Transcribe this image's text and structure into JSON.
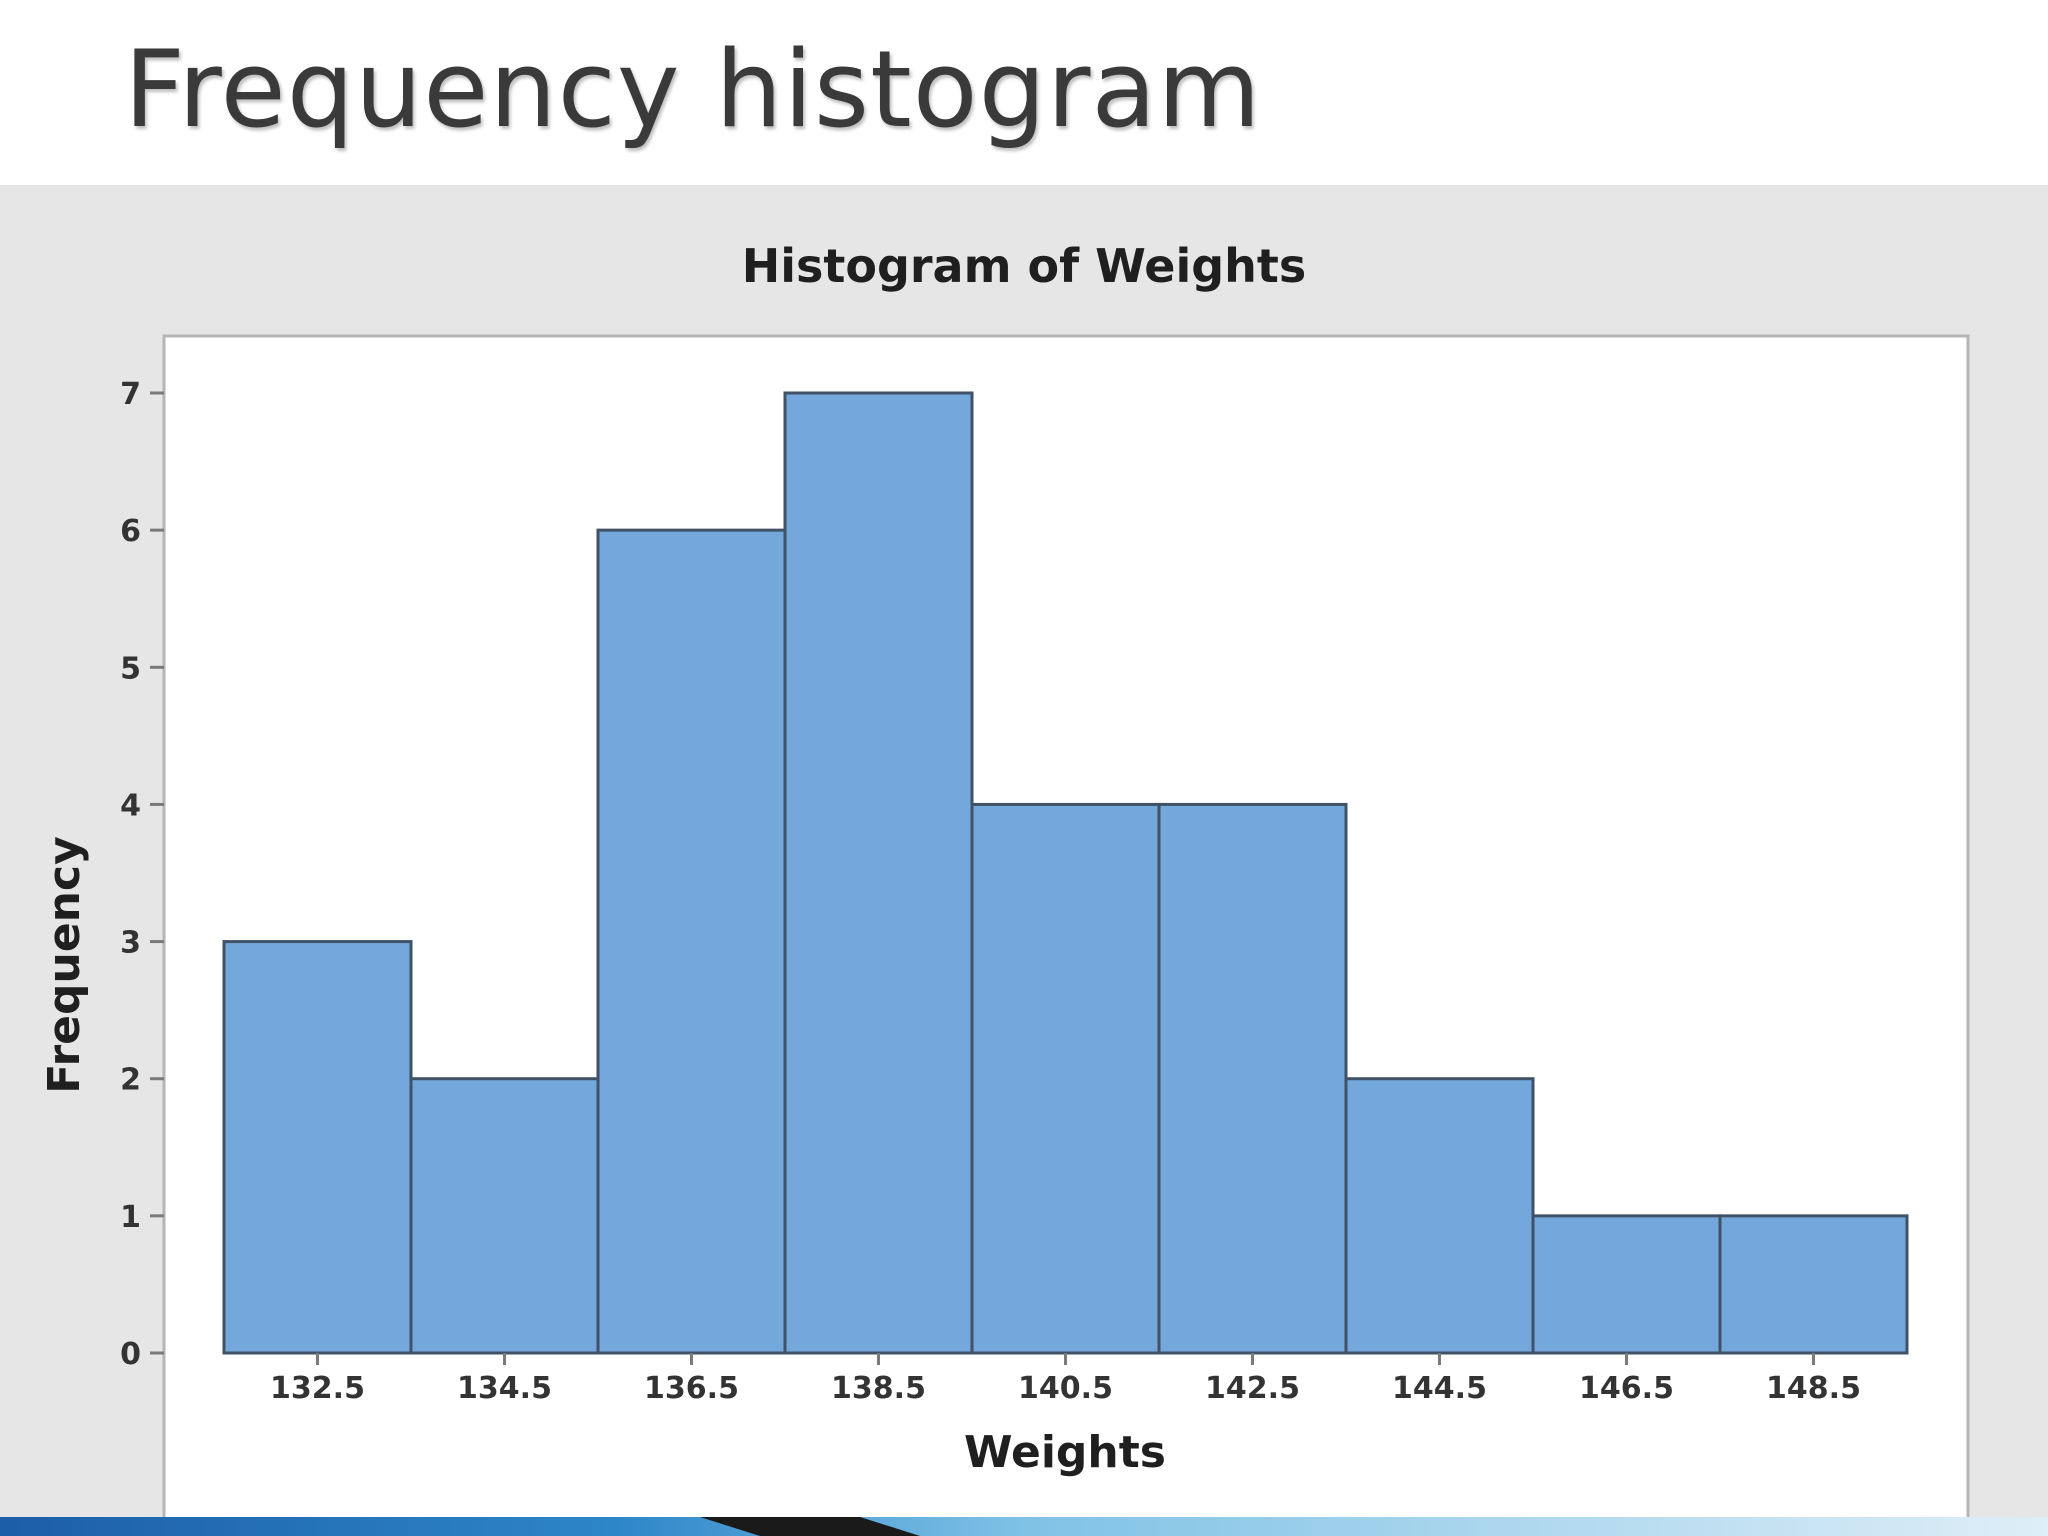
{
  "slide": {
    "title": "Frequency histogram"
  },
  "chart_data": {
    "type": "bar",
    "title": "Histogram of Weights",
    "xlabel": "Weights",
    "ylabel": "Frequency",
    "categories": [
      "132.5",
      "134.5",
      "136.5",
      "138.5",
      "140.5",
      "142.5",
      "144.5",
      "146.5",
      "148.5"
    ],
    "values": [
      3,
      2,
      6,
      7,
      4,
      4,
      2,
      1,
      1
    ],
    "ylim": [
      0,
      7
    ],
    "yticks": [
      0,
      1,
      2,
      3,
      4,
      5,
      6,
      7
    ],
    "grid": false,
    "legend": "none",
    "colors": {
      "bar_fill": "#74a7dc",
      "bar_edge": "#3f5266",
      "plot_background": "#ffffff",
      "panel_background": "#e6e6e6"
    }
  }
}
